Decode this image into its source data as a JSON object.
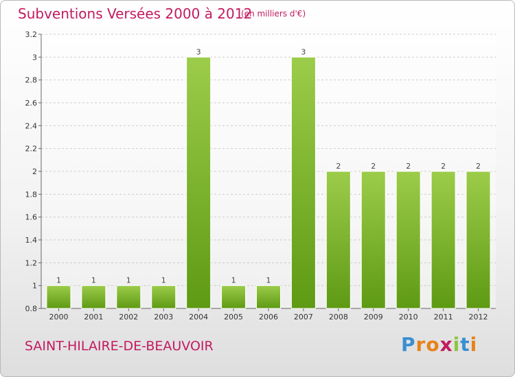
{
  "header": {
    "title": "Subventions Versées 2000 à 2012",
    "unit_note": "(en milliers d'€)"
  },
  "footer": {
    "commune": "SAINT-HILAIRE-DE-BEAUVOIR",
    "logo_text": "Proxiti"
  },
  "colors": {
    "title": "#c21a5e",
    "bar_top": "#9ccc4a",
    "bar_bottom": "#5e9a14",
    "grid": "#cccccc"
  },
  "chart_data": {
    "type": "bar",
    "categories": [
      "2000",
      "2001",
      "2002",
      "2003",
      "2004",
      "2005",
      "2006",
      "2007",
      "2008",
      "2009",
      "2010",
      "2011",
      "2012"
    ],
    "values": [
      1,
      1,
      1,
      1,
      3,
      1,
      1,
      3,
      2,
      2,
      2,
      2,
      2
    ],
    "data_labels": [
      "1",
      "1",
      "1",
      "1",
      "3",
      "1",
      "1",
      "3",
      "2",
      "2",
      "2",
      "2",
      "2"
    ],
    "ylim": [
      0.8,
      3.2
    ],
    "yticks": [
      0.8,
      1,
      1.2,
      1.4,
      1.6,
      1.8,
      2,
      2.2,
      2.4,
      2.6,
      2.8,
      3,
      3.2
    ],
    "ytick_labels": [
      "0.8",
      "1",
      "1.2",
      "1.4",
      "1.6",
      "1.8",
      "2",
      "2.2",
      "2.4",
      "2.6",
      "2.8",
      "3",
      "3.2"
    ],
    "grid": "horizontal",
    "title": "Subventions Versées 2000 à 2012",
    "xlabel": "",
    "ylabel": ""
  }
}
